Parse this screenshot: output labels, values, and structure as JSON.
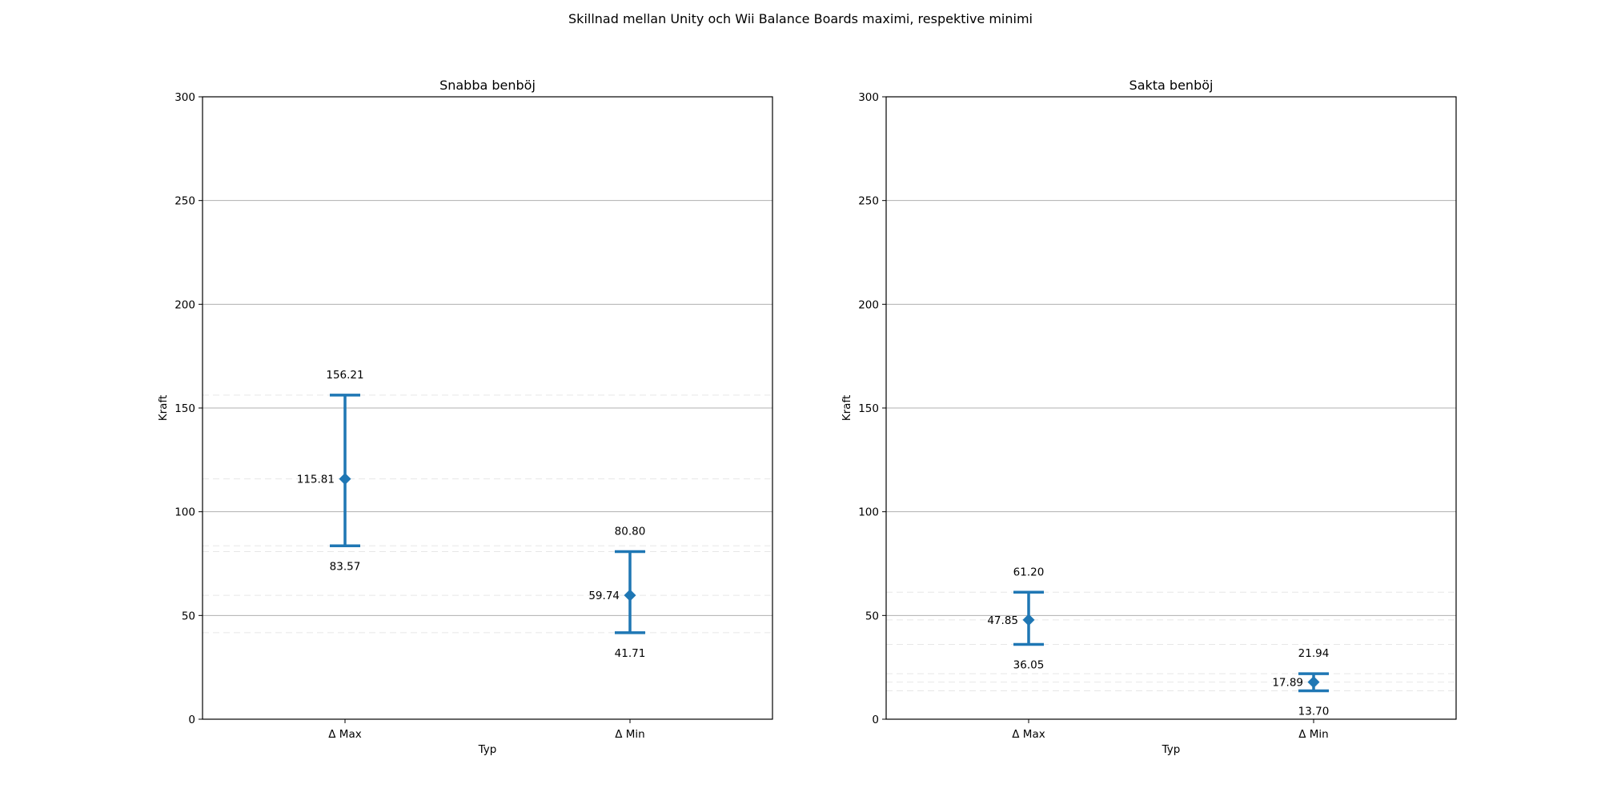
{
  "suptitle": "Skillnad mellan Unity och Wii Balance Boards maximi, respektive minimi",
  "chart_data": [
    {
      "type": "errorbar",
      "title": "Snabba benböj",
      "xlabel": "Typ",
      "ylabel": "Kraft",
      "ylim": [
        0,
        300
      ],
      "yticks": [
        0,
        50,
        100,
        150,
        200,
        250,
        300
      ],
      "grid": "y",
      "color": "#1f77b4",
      "categories": [
        "Δ Max",
        "Δ Min"
      ],
      "points": [
        {
          "category": "Δ Max",
          "mean": 115.81,
          "upper": 156.21,
          "lower": 83.57,
          "mean_label": "115.81",
          "upper_label": "156.21",
          "lower_label": "83.57"
        },
        {
          "category": "Δ Min",
          "mean": 59.74,
          "upper": 80.8,
          "lower": 41.71,
          "mean_label": "59.74",
          "upper_label": "80.80",
          "lower_label": "41.71"
        }
      ]
    },
    {
      "type": "errorbar",
      "title": "Sakta benböj",
      "xlabel": "Typ",
      "ylabel": "Kraft",
      "ylim": [
        0,
        300
      ],
      "yticks": [
        0,
        50,
        100,
        150,
        200,
        250,
        300
      ],
      "grid": "y",
      "color": "#1f77b4",
      "categories": [
        "Δ Max",
        "Δ Min"
      ],
      "points": [
        {
          "category": "Δ Max",
          "mean": 47.85,
          "upper": 61.2,
          "lower": 36.05,
          "mean_label": "47.85",
          "upper_label": "61.20",
          "lower_label": "36.05"
        },
        {
          "category": "Δ Min",
          "mean": 17.89,
          "upper": 21.94,
          "lower": 13.7,
          "mean_label": "17.89",
          "upper_label": "21.94",
          "lower_label": "13.70"
        }
      ]
    }
  ]
}
